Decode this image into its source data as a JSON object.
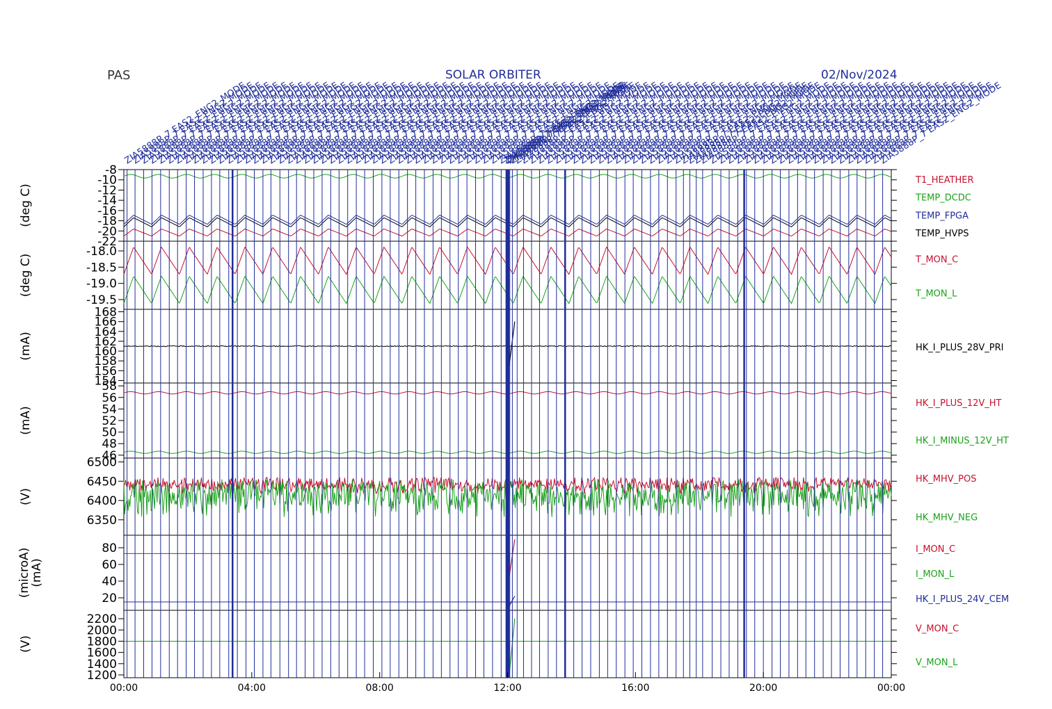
{
  "header": {
    "instrument": "PAS",
    "mission": "SOLAR ORBITER",
    "date": "02/Nov/2024",
    "event_labels": [
      "ZIA5888P_7",
      "EAS2",
      "ENG2_MODE",
      "EAS1_ENG2_MODE",
      "SSR_UPDATE",
      "SSR_IDX_RST"
    ]
  },
  "colors": {
    "red": "#c8102e",
    "green": "#1aa31a",
    "blue": "#1f2d9a",
    "black": "#000000",
    "event_line": "#1f2d9a"
  },
  "chart_data": {
    "type": "line",
    "x_axis": {
      "range": [
        "00:00",
        "24:00"
      ],
      "ticks": [
        "00:00",
        "04:00",
        "08:00",
        "12:00",
        "16:00",
        "20:00",
        "00:00"
      ]
    },
    "event_times_hours": [
      0.1,
      0.35,
      0.62,
      0.88,
      1.15,
      1.42,
      1.68,
      1.95,
      2.21,
      2.48,
      2.74,
      3.0,
      3.28,
      3.55,
      3.82,
      4.08,
      4.35,
      4.6,
      4.88,
      5.15,
      5.4,
      5.67,
      5.94,
      6.2,
      6.47,
      6.73,
      7.0,
      7.27,
      7.53,
      7.8,
      8.07,
      8.33,
      8.6,
      8.87,
      9.13,
      9.4,
      9.67,
      9.93,
      10.2,
      10.46,
      10.73,
      11.0,
      11.26,
      11.53,
      11.8,
      11.95,
      12.0,
      12.07,
      12.15,
      12.3,
      12.5,
      12.75,
      13.0,
      13.27,
      13.53,
      13.8,
      14.07,
      14.33,
      14.6,
      14.87,
      15.13,
      15.4,
      15.67,
      15.93,
      16.2,
      16.47,
      16.73,
      17.0,
      17.27,
      17.5,
      17.7,
      17.9,
      18.1,
      18.4,
      18.67,
      18.93,
      19.2,
      19.47,
      19.73,
      20.0,
      20.27,
      20.53,
      20.8,
      21.07,
      21.33,
      21.6,
      21.87,
      22.13,
      22.4,
      22.67,
      22.93,
      23.2,
      23.47,
      23.73
    ],
    "bold_event_times_hours": [
      3.4,
      11.97,
      12.03,
      13.8,
      19.4
    ],
    "panels": [
      {
        "id": "temps",
        "ylabel": "(deg C)",
        "ylim": [
          -22,
          -8
        ],
        "yticks": [
          -8,
          -10,
          -12,
          -14,
          -16,
          -18,
          -20,
          -22
        ],
        "ytick_labels": [
          "-8",
          "-10",
          "-12",
          "-14",
          "-16",
          "-18",
          "-20",
          "-22"
        ],
        "series": [
          {
            "name": "T1_HEATHER",
            "color": "#c8102e",
            "base": -20.3,
            "amp": 0.7,
            "wave": "saw",
            "period": 0.87
          },
          {
            "name": "TEMP_DCDC",
            "color": "#1aa31a",
            "base": -9.3,
            "amp": 0.35,
            "wave": "sine",
            "period": 0.87
          },
          {
            "name": "TEMP_FPGA",
            "color": "#1f2d9a",
            "base": -17.8,
            "amp": 0.9,
            "wave": "saw",
            "period": 0.87
          },
          {
            "name": "TEMP_HVPS",
            "color": "#000000",
            "base": -18.3,
            "amp": 0.9,
            "wave": "saw",
            "period": 0.87
          }
        ]
      },
      {
        "id": "tmon",
        "ylabel": "(deg C)",
        "ylim": [
          -19.8,
          -17.7
        ],
        "yticks": [
          -18.0,
          -18.5,
          -19.0,
          -19.5
        ],
        "ytick_labels": [
          "-18.0",
          "-18.5",
          "-19.0",
          "-19.5"
        ],
        "series": [
          {
            "name": "T_MON_C",
            "color": "#c8102e",
            "base": -18.3,
            "amp": 0.42,
            "wave": "saw",
            "period": 0.87
          },
          {
            "name": "T_MON_L",
            "color": "#1aa31a",
            "base": -19.2,
            "amp": 0.42,
            "wave": "saw",
            "period": 0.87
          }
        ]
      },
      {
        "id": "i28",
        "ylabel": "(mA)",
        "ylim": [
          153.5,
          168.5
        ],
        "yticks": [
          154,
          156,
          158,
          160,
          162,
          164,
          166,
          168
        ],
        "ytick_labels": [
          "154",
          "156",
          "158",
          "160",
          "162",
          "164",
          "166",
          "168"
        ],
        "series": [
          {
            "name": "HK_I_PLUS_28V_PRI",
            "color": "#000000",
            "base": 161.0,
            "amp": 0.1,
            "wave": "noise",
            "period": 0.3,
            "spike": [
              157,
              166
            ]
          }
        ]
      },
      {
        "id": "i12",
        "ylabel": "(mA)",
        "ylim": [
          45.5,
          58.5
        ],
        "yticks": [
          46,
          48,
          50,
          52,
          54,
          56,
          58
        ],
        "ytick_labels": [
          "46",
          "48",
          "50",
          "52",
          "54",
          "56",
          "58"
        ],
        "series": [
          {
            "name": "HK_I_PLUS_12V_HT",
            "color": "#c8102e",
            "base": 56.8,
            "amp": 0.2,
            "wave": "sine",
            "period": 0.87
          },
          {
            "name": "HK_I_MINUS_12V_HT",
            "color": "#1aa31a",
            "base": 46.5,
            "amp": 0.2,
            "wave": "sine",
            "period": 0.87
          }
        ]
      },
      {
        "id": "mhv",
        "ylabel": "(V)",
        "ylim": [
          6310,
          6510
        ],
        "yticks": [
          6350,
          6400,
          6450,
          6500
        ],
        "ytick_labels": [
          "6350",
          "6400",
          "6450",
          "6500"
        ],
        "series": [
          {
            "name": "HK_MHV_POS",
            "color": "#c8102e",
            "base": 6445,
            "amp": 15,
            "wave": "jitter",
            "period": 0.1
          },
          {
            "name": "HK_MHV_NEG",
            "color": "#1aa31a",
            "base": 6420,
            "amp": 35,
            "wave": "jitter",
            "period": 0.1
          }
        ]
      },
      {
        "id": "imon",
        "ylabel": "(microA)",
        "ylabel2": "(mA)",
        "ylim": [
          5,
          95
        ],
        "yticks": [
          20,
          40,
          60,
          80
        ],
        "ytick_labels": [
          "20",
          "40",
          "60",
          "80"
        ],
        "series": [
          {
            "name": "I_MON_C",
            "color": "#c8102e",
            "base": 73,
            "amp": 0.3,
            "wave": "flat",
            "period": 1,
            "spike": [
              45,
              90
            ]
          },
          {
            "name": "I_MON_L",
            "color": "#1aa31a",
            "base": null,
            "amp": 0,
            "wave": "none",
            "period": 1
          },
          {
            "name": "HK_I_PLUS_24V_CEM",
            "color": "#1f2d9a",
            "base": 15,
            "amp": 0.2,
            "wave": "flat",
            "period": 1,
            "spike": [
              10,
              22
            ]
          }
        ]
      },
      {
        "id": "vmon",
        "ylabel": "(V)",
        "ylim": [
          1150,
          2350
        ],
        "yticks": [
          1200,
          1400,
          1600,
          1800,
          2000,
          2200
        ],
        "ytick_labels": [
          "1200",
          "1400",
          "1600",
          "1800",
          "2000",
          "2200"
        ],
        "series": [
          {
            "name": "V_MON_C",
            "color": "#c8102e",
            "base": null,
            "amp": 0,
            "wave": "none",
            "period": 1
          },
          {
            "name": "V_MON_L",
            "color": "#1aa31a",
            "base": 1800,
            "amp": 0,
            "wave": "flat",
            "period": 1,
            "spike": [
              1180,
              2200
            ]
          }
        ]
      }
    ]
  }
}
